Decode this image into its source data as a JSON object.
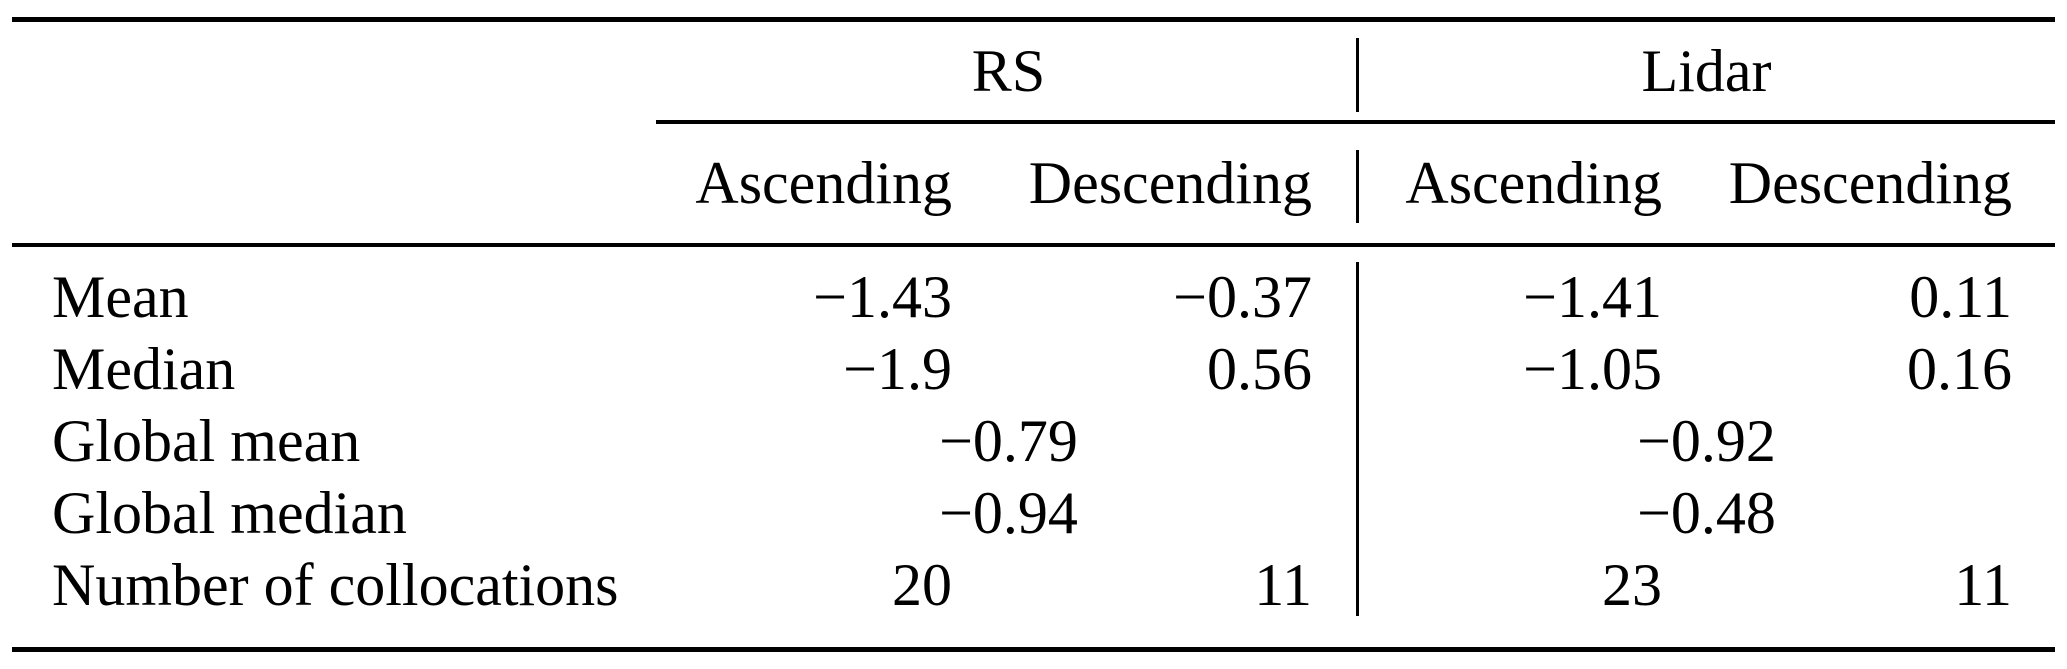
{
  "colors": {
    "background": "#ffffff",
    "text": "#000000",
    "rule": "#000000"
  },
  "table": {
    "groups": [
      {
        "label": "RS",
        "columns": [
          "Ascending",
          "Descending"
        ]
      },
      {
        "label": "Lidar",
        "columns": [
          "Ascending",
          "Descending"
        ]
      }
    ],
    "rows": [
      {
        "label": "Mean",
        "cells": {
          "rs_ascending": "−1.43",
          "rs_descending": "−0.37",
          "lidar_ascending": "−1.41",
          "lidar_descending": "0.11"
        }
      },
      {
        "label": "Median",
        "cells": {
          "rs_ascending": "−1.9",
          "rs_descending": "0.56",
          "lidar_ascending": "−1.05",
          "lidar_descending": "0.16"
        }
      },
      {
        "label": "Global mean",
        "cells": {
          "rs_group": "−0.79",
          "lidar_group": "−0.92"
        }
      },
      {
        "label": "Global median",
        "cells": {
          "rs_group": "−0.94",
          "lidar_group": "−0.48"
        }
      },
      {
        "label": "Number of collocations",
        "cells": {
          "rs_ascending": "20",
          "rs_descending": "11",
          "lidar_ascending": "23",
          "lidar_descending": "11"
        }
      }
    ]
  },
  "chart_data": {
    "type": "table",
    "column_groups": [
      "RS",
      "Lidar"
    ],
    "columns": [
      "RS Ascending",
      "RS Descending",
      "Lidar Ascending",
      "Lidar Descending"
    ],
    "rows": [
      {
        "label": "Mean",
        "values": [
          -1.43,
          -0.37,
          -1.41,
          0.11
        ]
      },
      {
        "label": "Median",
        "values": [
          -1.9,
          0.56,
          -1.05,
          0.16
        ]
      },
      {
        "label": "Global mean",
        "values_grouped": {
          "RS": -0.79,
          "Lidar": -0.92
        }
      },
      {
        "label": "Global median",
        "values_grouped": {
          "RS": -0.94,
          "Lidar": -0.48
        }
      },
      {
        "label": "Number of collocations",
        "values": [
          20,
          11,
          23,
          11
        ]
      }
    ]
  }
}
